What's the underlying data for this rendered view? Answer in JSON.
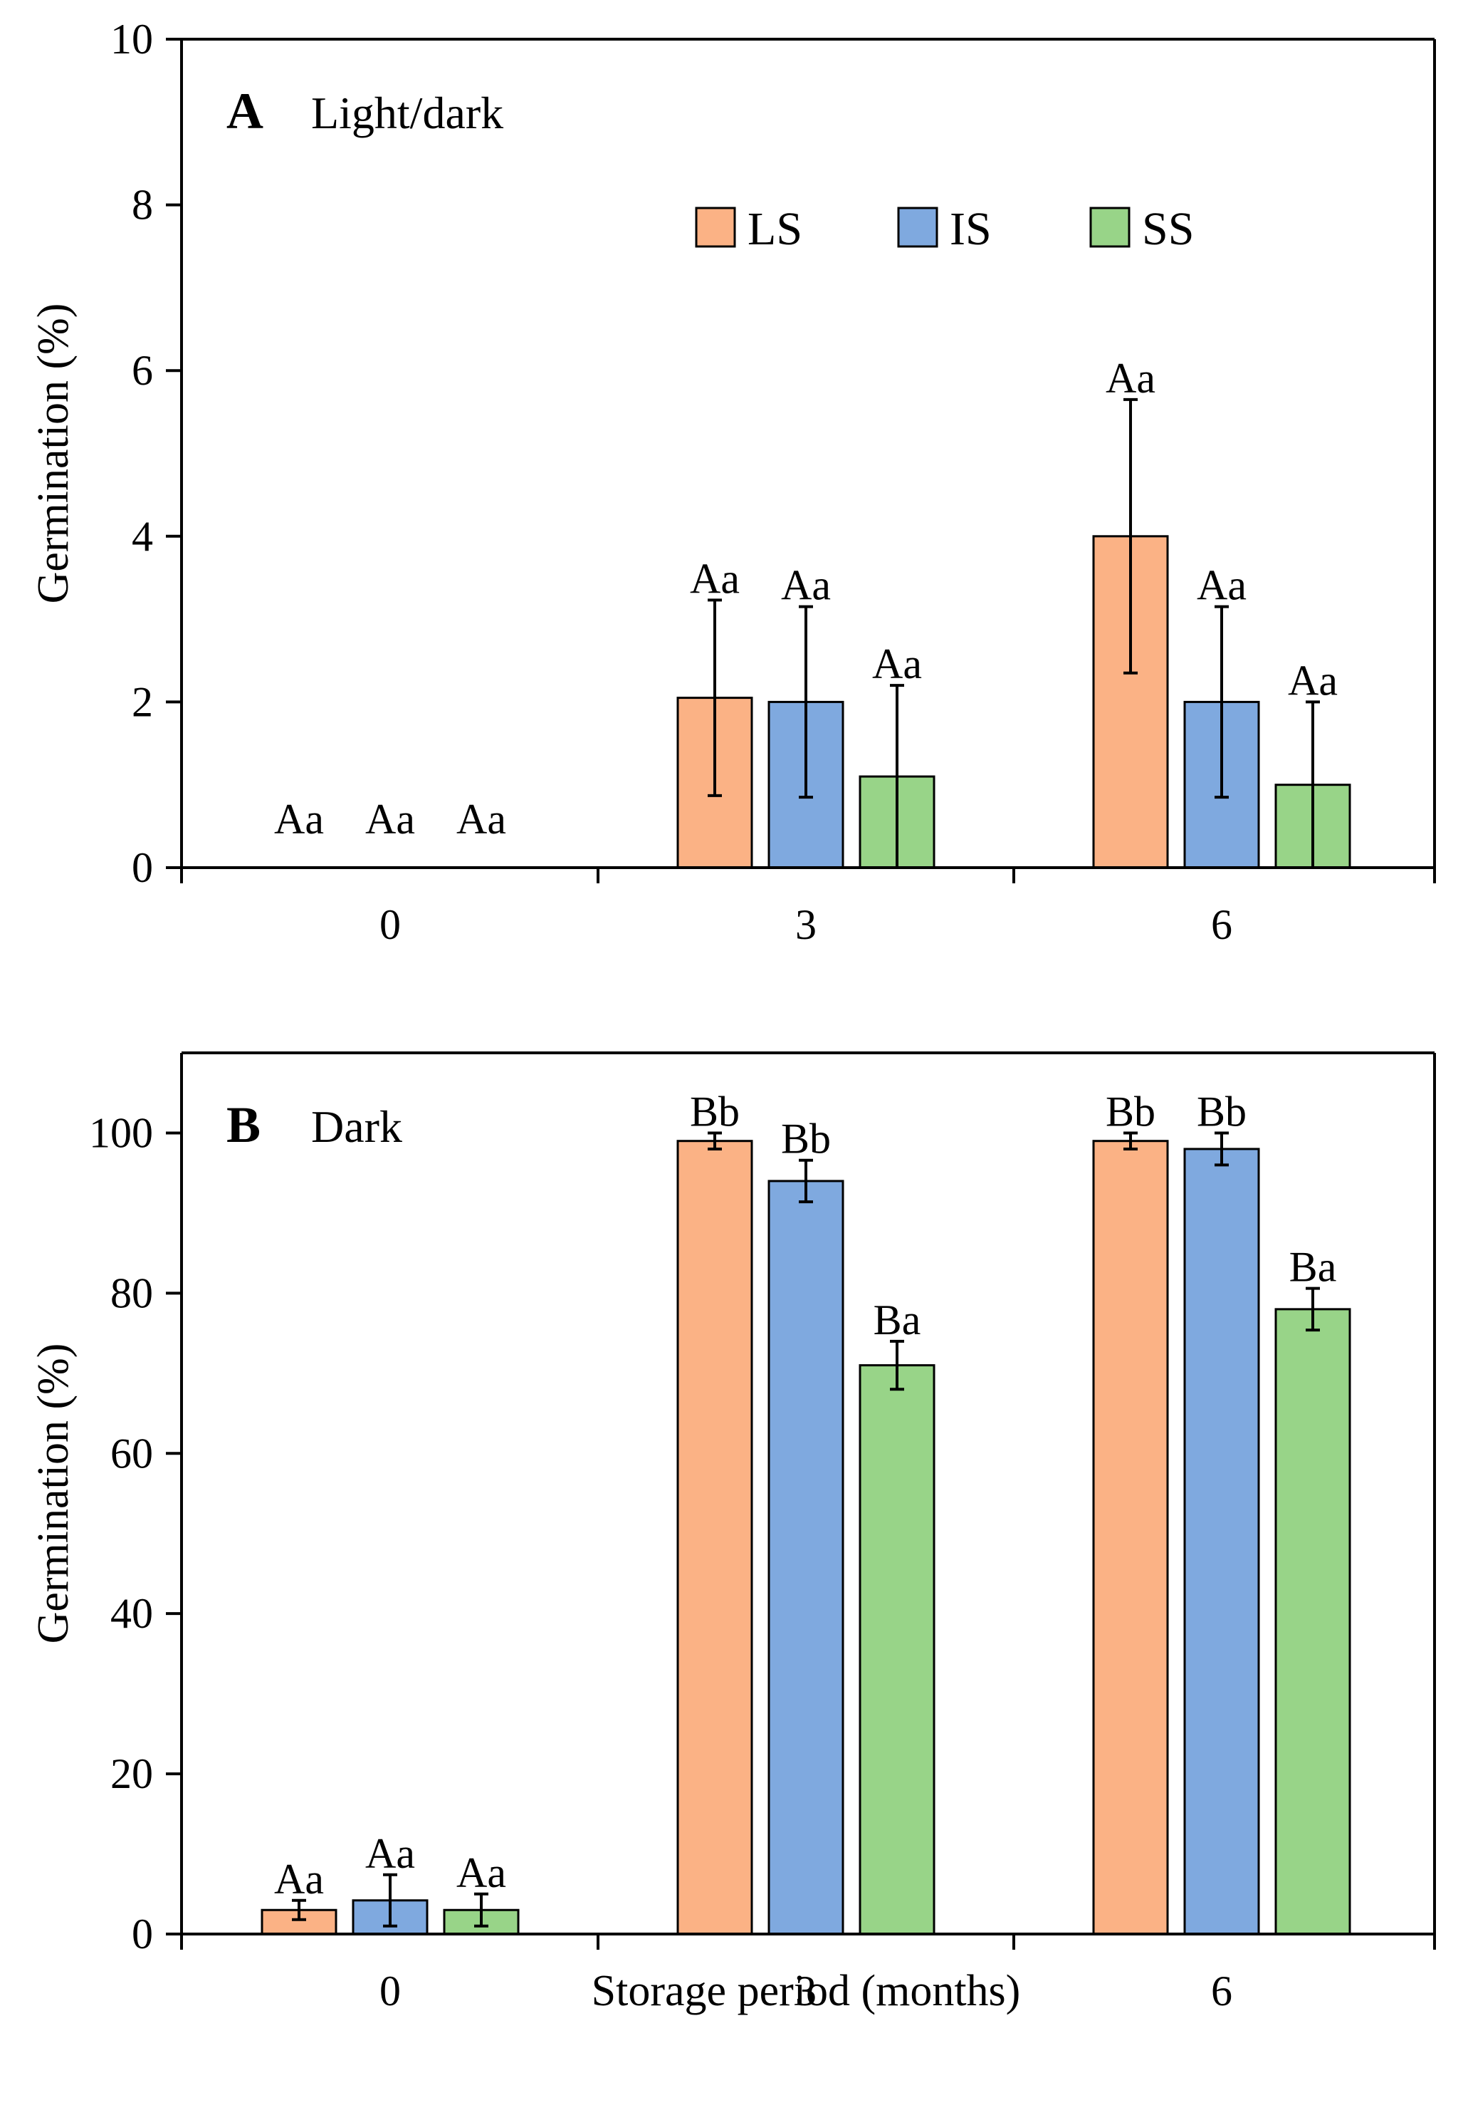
{
  "chart_data": [
    {
      "type": "bar",
      "panel_letter": "A",
      "title": "Light/dark",
      "xlabel": "",
      "ylabel": "Germination (%)",
      "ylim": [
        0,
        10
      ],
      "yticks": [
        0,
        2,
        4,
        6,
        8,
        10
      ],
      "categories": [
        "0",
        "3",
        "6"
      ],
      "legend_position": "top-center",
      "series": [
        {
          "name": "LS",
          "color": "#FBB285",
          "values": [
            0,
            2.05,
            4.0
          ],
          "errors": [
            0,
            1.18,
            1.65
          ],
          "labels": [
            "Aa",
            "Aa",
            "Aa"
          ]
        },
        {
          "name": "IS",
          "color": "#7FA9DF",
          "values": [
            0,
            2.0,
            2.0
          ],
          "errors": [
            0,
            1.15,
            1.15
          ],
          "labels": [
            "Aa",
            "Aa",
            "Aa"
          ]
        },
        {
          "name": "SS",
          "color": "#98D488",
          "values": [
            0,
            1.1,
            1.0
          ],
          "errors": [
            0,
            1.1,
            1.0
          ],
          "labels": [
            "Aa",
            "Aa",
            "Aa"
          ]
        }
      ]
    },
    {
      "type": "bar",
      "panel_letter": "B",
      "title": "Dark",
      "xlabel": "Storage period (months)",
      "ylabel": "Germination (%)",
      "ylim": [
        0,
        110
      ],
      "yticks": [
        0,
        20,
        40,
        60,
        80,
        100
      ],
      "categories": [
        "0",
        "3",
        "6"
      ],
      "series": [
        {
          "name": "LS",
          "color": "#FBB285",
          "values": [
            3.0,
            99.0,
            99.0
          ],
          "errors": [
            1.2,
            1.0,
            1.0
          ],
          "labels": [
            "Aa",
            "Bb",
            "Bb"
          ]
        },
        {
          "name": "IS",
          "color": "#7FA9DF",
          "values": [
            4.2,
            94.0,
            98.0
          ],
          "errors": [
            3.2,
            2.6,
            2.0
          ],
          "labels": [
            "Aa",
            "Bb",
            "Bb"
          ]
        },
        {
          "name": "SS",
          "color": "#98D488",
          "values": [
            3.0,
            71.0,
            78.0
          ],
          "errors": [
            2.0,
            3.0,
            2.6
          ],
          "labels": [
            "Aa",
            "Ba",
            "Ba"
          ]
        }
      ]
    }
  ]
}
